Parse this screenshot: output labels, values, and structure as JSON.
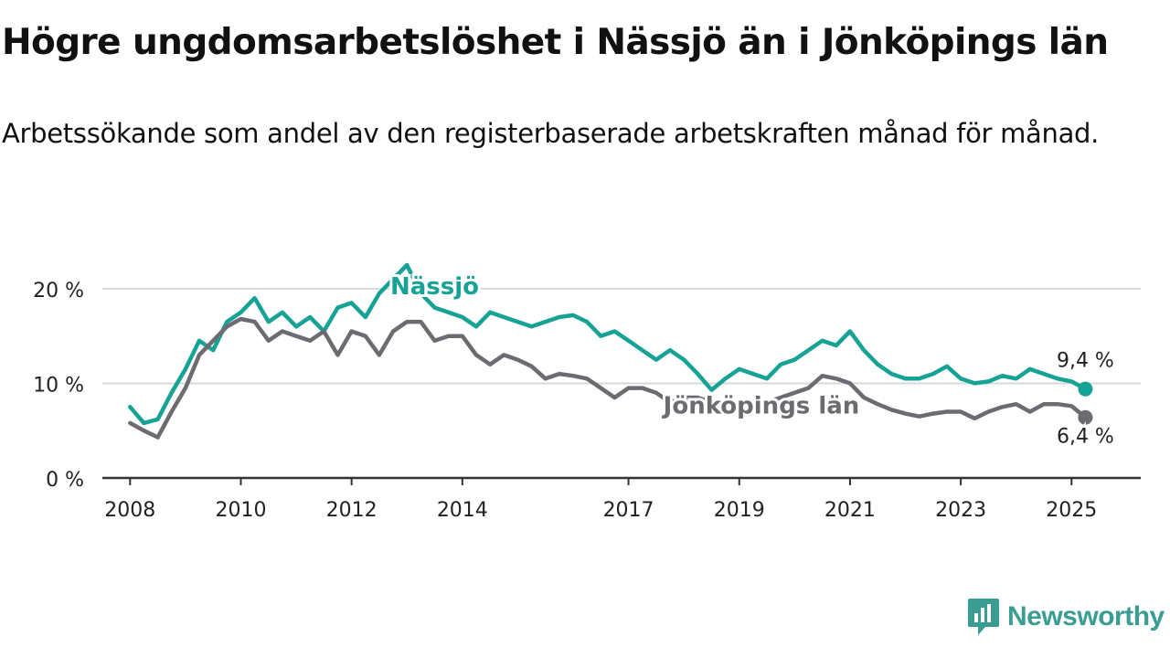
{
  "title": "Högre ungdomsarbetslöshet i Nässjö än i Jönköpings län",
  "subtitle": "Arbetssökande som andel av den registerbaserade arbetskraften månad för månad.",
  "brand": {
    "name": "Newsworthy",
    "color": "#3a9d94"
  },
  "colors": {
    "grid": "#d8d8d8",
    "axis": "#333333",
    "text": "#222222"
  },
  "chart_data": {
    "type": "line",
    "title": "Högre ungdomsarbetslöshet i Nässjö än i Jönköpings län",
    "xlabel": "",
    "ylabel": "",
    "x_tick_labels": [
      "2008",
      "2010",
      "2012",
      "2014",
      "2017",
      "2019",
      "2021",
      "2023",
      "2025"
    ],
    "y_tick_labels": [
      "0 %",
      "10 %",
      "20 %"
    ],
    "y_ticks": [
      0,
      10,
      20
    ],
    "ylim": [
      0,
      22.5
    ],
    "xlim": [
      "2007-07",
      "2026-04"
    ],
    "grid": true,
    "legend": "inline labels",
    "series": [
      {
        "name": "Nässjö",
        "color": "#16a395",
        "end_label": "9,4 %",
        "points": [
          [
            "2008-01",
            7.5
          ],
          [
            "2008-04",
            5.8
          ],
          [
            "2008-07",
            6.2
          ],
          [
            "2008-10",
            9.0
          ],
          [
            "2009-01",
            11.5
          ],
          [
            "2009-04",
            14.5
          ],
          [
            "2009-07",
            13.5
          ],
          [
            "2009-10",
            16.5
          ],
          [
            "2010-01",
            17.5
          ],
          [
            "2010-04",
            19.0
          ],
          [
            "2010-07",
            16.5
          ],
          [
            "2010-10",
            17.5
          ],
          [
            "2011-01",
            16.0
          ],
          [
            "2011-04",
            17.0
          ],
          [
            "2011-07",
            15.5
          ],
          [
            "2011-10",
            18.0
          ],
          [
            "2012-01",
            18.5
          ],
          [
            "2012-04",
            17.0
          ],
          [
            "2012-07",
            19.5
          ],
          [
            "2012-10",
            21.0
          ],
          [
            "2013-01",
            22.5
          ],
          [
            "2013-04",
            19.5
          ],
          [
            "2013-07",
            18.0
          ],
          [
            "2013-10",
            17.5
          ],
          [
            "2014-01",
            17.0
          ],
          [
            "2014-04",
            16.0
          ],
          [
            "2014-07",
            17.5
          ],
          [
            "2014-10",
            17.0
          ],
          [
            "2015-01",
            16.5
          ],
          [
            "2015-04",
            16.0
          ],
          [
            "2015-07",
            16.5
          ],
          [
            "2015-10",
            17.0
          ],
          [
            "2016-01",
            17.2
          ],
          [
            "2016-04",
            16.5
          ],
          [
            "2016-07",
            15.0
          ],
          [
            "2016-10",
            15.5
          ],
          [
            "2017-01",
            14.5
          ],
          [
            "2017-04",
            13.5
          ],
          [
            "2017-07",
            12.5
          ],
          [
            "2017-10",
            13.5
          ],
          [
            "2018-01",
            12.5
          ],
          [
            "2018-04",
            11.0
          ],
          [
            "2018-07",
            9.3
          ],
          [
            "2018-10",
            10.5
          ],
          [
            "2019-01",
            11.5
          ],
          [
            "2019-04",
            11.0
          ],
          [
            "2019-07",
            10.5
          ],
          [
            "2019-10",
            12.0
          ],
          [
            "2020-01",
            12.5
          ],
          [
            "2020-04",
            13.5
          ],
          [
            "2020-07",
            14.5
          ],
          [
            "2020-10",
            14.0
          ],
          [
            "2021-01",
            15.5
          ],
          [
            "2021-04",
            13.5
          ],
          [
            "2021-07",
            12.0
          ],
          [
            "2021-10",
            11.0
          ],
          [
            "2022-01",
            10.5
          ],
          [
            "2022-04",
            10.5
          ],
          [
            "2022-07",
            11.0
          ],
          [
            "2022-10",
            11.8
          ],
          [
            "2023-01",
            10.5
          ],
          [
            "2023-04",
            10.0
          ],
          [
            "2023-07",
            10.2
          ],
          [
            "2023-10",
            10.8
          ],
          [
            "2024-01",
            10.5
          ],
          [
            "2024-04",
            11.5
          ],
          [
            "2024-07",
            11.0
          ],
          [
            "2024-10",
            10.5
          ],
          [
            "2025-01",
            10.2
          ],
          [
            "2025-04",
            9.4
          ]
        ]
      },
      {
        "name": "Jönköpings län",
        "color": "#6d6a71",
        "end_label": "6,4 %",
        "points": [
          [
            "2008-01",
            5.8
          ],
          [
            "2008-04",
            5.0
          ],
          [
            "2008-07",
            4.3
          ],
          [
            "2008-10",
            7.0
          ],
          [
            "2009-01",
            9.5
          ],
          [
            "2009-04",
            13.0
          ],
          [
            "2009-07",
            14.5
          ],
          [
            "2009-10",
            16.0
          ],
          [
            "2010-01",
            16.8
          ],
          [
            "2010-04",
            16.5
          ],
          [
            "2010-07",
            14.5
          ],
          [
            "2010-10",
            15.5
          ],
          [
            "2011-01",
            15.0
          ],
          [
            "2011-04",
            14.5
          ],
          [
            "2011-07",
            15.5
          ],
          [
            "2011-10",
            13.0
          ],
          [
            "2012-01",
            15.5
          ],
          [
            "2012-04",
            15.0
          ],
          [
            "2012-07",
            13.0
          ],
          [
            "2012-10",
            15.5
          ],
          [
            "2013-01",
            16.5
          ],
          [
            "2013-04",
            16.5
          ],
          [
            "2013-07",
            14.5
          ],
          [
            "2013-10",
            15.0
          ],
          [
            "2014-01",
            15.0
          ],
          [
            "2014-04",
            13.0
          ],
          [
            "2014-07",
            12.0
          ],
          [
            "2014-10",
            13.0
          ],
          [
            "2015-01",
            12.5
          ],
          [
            "2015-04",
            11.8
          ],
          [
            "2015-07",
            10.5
          ],
          [
            "2015-10",
            11.0
          ],
          [
            "2016-01",
            10.8
          ],
          [
            "2016-04",
            10.5
          ],
          [
            "2016-07",
            9.5
          ],
          [
            "2016-10",
            8.5
          ],
          [
            "2017-01",
            9.5
          ],
          [
            "2017-04",
            9.5
          ],
          [
            "2017-07",
            9.0
          ],
          [
            "2017-10",
            8.0
          ],
          [
            "2018-01",
            8.5
          ],
          [
            "2018-04",
            8.5
          ],
          [
            "2018-07",
            8.0
          ],
          [
            "2018-10",
            7.5
          ],
          [
            "2019-01",
            7.5
          ],
          [
            "2019-04",
            7.8
          ],
          [
            "2019-07",
            8.0
          ],
          [
            "2019-10",
            8.5
          ],
          [
            "2020-01",
            9.0
          ],
          [
            "2020-04",
            9.5
          ],
          [
            "2020-07",
            10.8
          ],
          [
            "2020-10",
            10.5
          ],
          [
            "2021-01",
            10.0
          ],
          [
            "2021-04",
            8.5
          ],
          [
            "2021-07",
            7.8
          ],
          [
            "2021-10",
            7.2
          ],
          [
            "2022-01",
            6.8
          ],
          [
            "2022-04",
            6.5
          ],
          [
            "2022-07",
            6.8
          ],
          [
            "2022-10",
            7.0
          ],
          [
            "2023-01",
            7.0
          ],
          [
            "2023-04",
            6.3
          ],
          [
            "2023-07",
            7.0
          ],
          [
            "2023-10",
            7.5
          ],
          [
            "2024-01",
            7.8
          ],
          [
            "2024-04",
            7.0
          ],
          [
            "2024-07",
            7.8
          ],
          [
            "2024-10",
            7.8
          ],
          [
            "2025-01",
            7.6
          ],
          [
            "2025-04",
            6.4
          ]
        ]
      }
    ]
  }
}
